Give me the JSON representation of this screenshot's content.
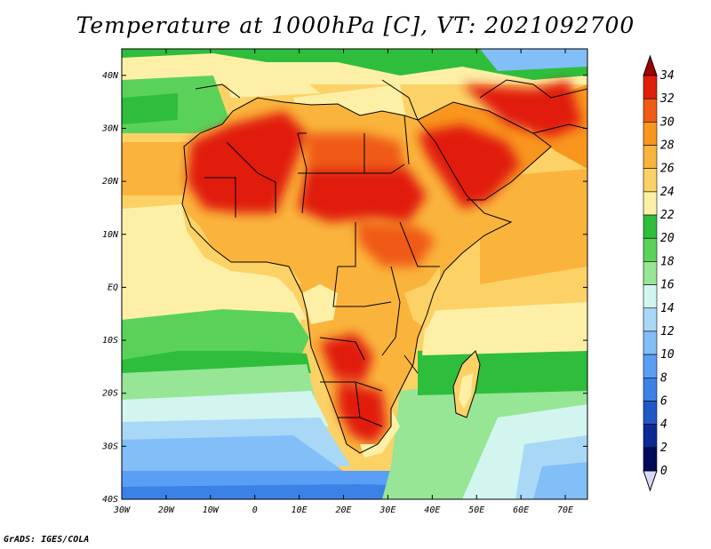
{
  "title": "Temperature at 1000hPa [C], VT: 2021092700",
  "credit": "GrADS: IGES/COLA",
  "map": {
    "lon_range": [
      -30,
      75
    ],
    "lat_range": [
      -40,
      45
    ],
    "lon_ticks": [
      {
        "value": -30,
        "label": "30W"
      },
      {
        "value": -20,
        "label": "20W"
      },
      {
        "value": -10,
        "label": "10W"
      },
      {
        "value": 0,
        "label": "0"
      },
      {
        "value": 10,
        "label": "10E"
      },
      {
        "value": 20,
        "label": "20E"
      },
      {
        "value": 30,
        "label": "30E"
      },
      {
        "value": 40,
        "label": "40E"
      },
      {
        "value": 50,
        "label": "50E"
      },
      {
        "value": 60,
        "label": "60E"
      },
      {
        "value": 70,
        "label": "70E"
      }
    ],
    "lat_ticks": [
      {
        "value": 40,
        "label": "40N"
      },
      {
        "value": 30,
        "label": "30N"
      },
      {
        "value": 20,
        "label": "20N"
      },
      {
        "value": 10,
        "label": "10N"
      },
      {
        "value": 0,
        "label": "EQ"
      },
      {
        "value": -10,
        "label": "10S"
      },
      {
        "value": -20,
        "label": "20S"
      },
      {
        "value": -30,
        "label": "30S"
      },
      {
        "value": -40,
        "label": "40S"
      }
    ]
  },
  "colorbar": {
    "labels": [
      "34",
      "32",
      "30",
      "28",
      "26",
      "24",
      "22",
      "20",
      "18",
      "16",
      "14",
      "12",
      "10",
      "8",
      "6",
      "4",
      "2",
      "0"
    ],
    "colors": [
      "#a00000",
      "#e11e0a",
      "#f05a14",
      "#f8961e",
      "#fab43c",
      "#fcd266",
      "#fdf0a6",
      "#2ebe3c",
      "#5ad25a",
      "#96e696",
      "#d2f5f0",
      "#a8d8f6",
      "#82bef8",
      "#5a9ff5",
      "#3c82e6",
      "#2058c8",
      "#0c2a96",
      "#000c5a",
      "#d8d8f8"
    ]
  }
}
